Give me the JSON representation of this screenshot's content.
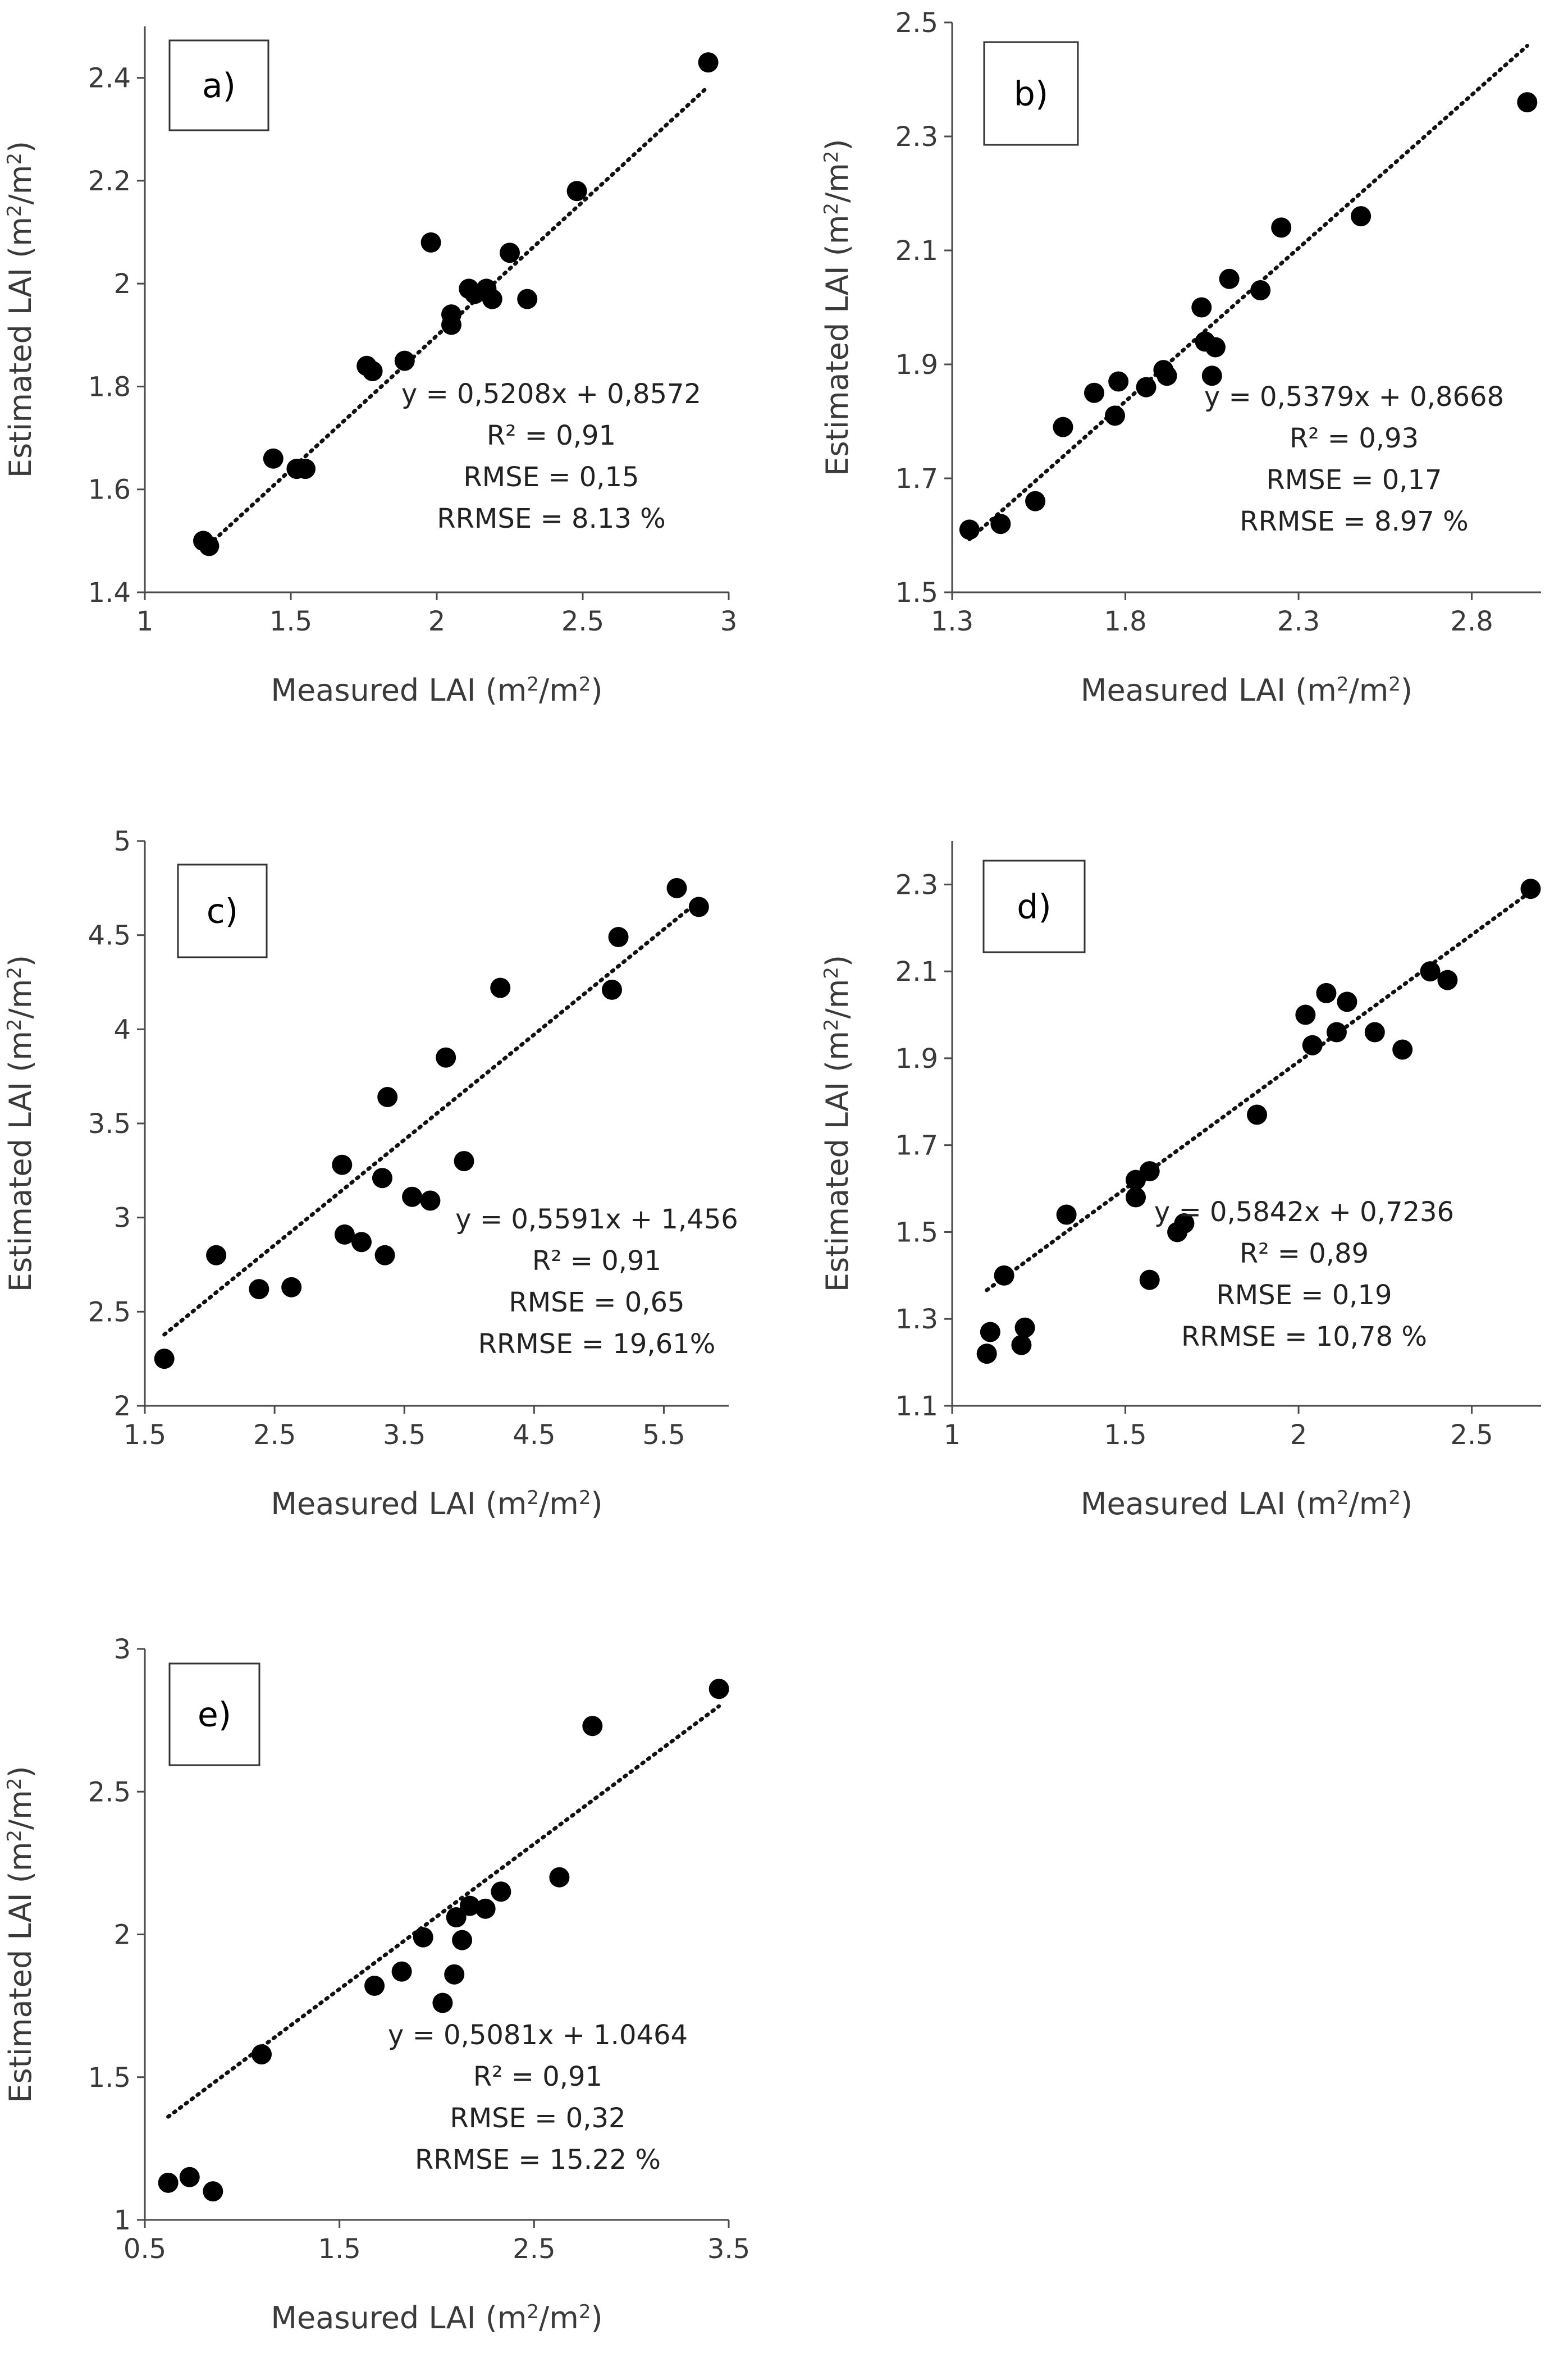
{
  "chart_data": [
    {
      "type": "scatter",
      "panel_label": "a)",
      "xlabel": "Measured LAI (m2/m2)",
      "ylabel": "Estimated LAI (m2/m2)",
      "xlim": [
        1,
        3
      ],
      "ylim": [
        1.4,
        2.5
      ],
      "xticks": [
        1,
        1.5,
        2,
        2.5,
        3
      ],
      "xtick_labels": [
        "1",
        "1.5",
        "2",
        "2.5",
        "3"
      ],
      "yticks": [
        1.4,
        1.6,
        1.8,
        2.0,
        2.2,
        2.4
      ],
      "ytick_labels": [
        "1.4",
        "1.6",
        "1.8",
        "2",
        "2.2",
        "2.4"
      ],
      "x": [
        1.2,
        1.22,
        1.44,
        1.52,
        1.55,
        1.76,
        1.78,
        1.89,
        1.98,
        2.05,
        2.05,
        2.11,
        2.13,
        2.17,
        2.19,
        2.25,
        2.31,
        2.48,
        2.93
      ],
      "y": [
        1.5,
        1.49,
        1.66,
        1.64,
        1.64,
        1.84,
        1.83,
        1.85,
        2.08,
        1.92,
        1.94,
        1.99,
        1.98,
        1.99,
        1.97,
        2.06,
        1.97,
        2.18,
        2.43
      ],
      "trendline": {
        "slope": 0.5208,
        "intercept": 0.8572,
        "x_range": [
          1.2,
          2.93
        ]
      },
      "annotations": [
        "y = 0,5208x + 0,8572",
        "R² = 0,91",
        "RMSE = 0,15",
        "RRMSE = 8.13 %"
      ]
    },
    {
      "type": "scatter",
      "panel_label": "b)",
      "xlabel": "Measured LAI (m2/m2)",
      "ylabel": "Estimated LAI (m2/m2)",
      "xlim": [
        1.3,
        3.0
      ],
      "ylim": [
        1.5,
        2.5
      ],
      "xticks": [
        1.3,
        1.8,
        2.3,
        2.8
      ],
      "xtick_labels": [
        "1.3",
        "1.8",
        "2.3",
        "2.8"
      ],
      "yticks": [
        1.5,
        1.7,
        1.9,
        2.1,
        2.3,
        2.5
      ],
      "ytick_labels": [
        "1.5",
        "1.7",
        "1.9",
        "2.1",
        "2.3",
        "2.5"
      ],
      "x": [
        1.35,
        1.44,
        1.54,
        1.62,
        1.71,
        1.77,
        1.78,
        1.86,
        1.91,
        1.92,
        2.02,
        2.03,
        2.05,
        2.06,
        2.1,
        2.19,
        2.25,
        2.48,
        2.96
      ],
      "y": [
        1.61,
        1.62,
        1.66,
        1.79,
        1.85,
        1.81,
        1.87,
        1.86,
        1.89,
        1.88,
        2.0,
        1.94,
        1.88,
        1.93,
        2.05,
        2.03,
        2.14,
        2.16,
        2.36
      ],
      "trendline": {
        "slope": 0.5379,
        "intercept": 0.8668,
        "x_range": [
          1.35,
          2.96
        ]
      },
      "annotations": [
        "y = 0,5379x + 0,8668",
        "R² = 0,93",
        "RMSE = 0,17",
        "RRMSE = 8.97 %"
      ]
    },
    {
      "type": "scatter",
      "panel_label": "c)",
      "xlabel": "Measured LAI (m2/m2)",
      "ylabel": "Estimated LAI (m2/m2)",
      "xlim": [
        1.5,
        6.0
      ],
      "ylim": [
        2,
        5
      ],
      "xticks": [
        1.5,
        2.5,
        3.5,
        4.5,
        5.5
      ],
      "xtick_labels": [
        "1.5",
        "2.5",
        "3.5",
        "4.5",
        "5.5"
      ],
      "yticks": [
        2,
        2.5,
        3,
        3.5,
        4,
        4.5,
        5
      ],
      "ytick_labels": [
        "2",
        "2.5",
        "3",
        "3.5",
        "4",
        "4.5",
        "5"
      ],
      "x": [
        1.65,
        2.05,
        2.38,
        2.63,
        3.02,
        3.04,
        3.17,
        3.33,
        3.35,
        3.37,
        3.56,
        3.7,
        3.82,
        3.96,
        4.24,
        5.1,
        5.15,
        5.6,
        5.77
      ],
      "y": [
        2.25,
        2.8,
        2.62,
        2.63,
        3.28,
        2.91,
        2.87,
        3.21,
        2.8,
        3.64,
        3.11,
        3.09,
        3.85,
        3.3,
        4.22,
        4.21,
        4.49,
        4.75,
        4.65
      ],
      "trendline": {
        "slope": 0.5591,
        "intercept": 1.456,
        "x_range": [
          1.65,
          5.77
        ]
      },
      "annotations": [
        "y = 0,5591x + 1,456",
        "R² = 0,91",
        "RMSE = 0,65",
        "RRMSE = 19,61%"
      ]
    },
    {
      "type": "scatter",
      "panel_label": "d)",
      "xlabel": "Measured LAI (m2/m2)",
      "ylabel": "Estimated LAI (m2/m2)",
      "xlim": [
        1,
        2.7
      ],
      "ylim": [
        1.1,
        2.4
      ],
      "xticks": [
        1,
        1.5,
        2,
        2.5
      ],
      "xtick_labels": [
        "1",
        "1.5",
        "2",
        "2.5"
      ],
      "yticks": [
        1.1,
        1.3,
        1.5,
        1.7,
        1.9,
        2.1,
        2.3
      ],
      "ytick_labels": [
        "1.1",
        "1.3",
        "1.5",
        "1.7",
        "1.9",
        "2.1",
        "2.3"
      ],
      "x": [
        1.1,
        1.11,
        1.15,
        1.2,
        1.21,
        1.33,
        1.53,
        1.53,
        1.57,
        1.57,
        1.65,
        1.67,
        1.88,
        2.02,
        2.04,
        2.08,
        2.11,
        2.14,
        2.22,
        2.3,
        2.38,
        2.43,
        2.67
      ],
      "y": [
        1.22,
        1.27,
        1.4,
        1.24,
        1.28,
        1.54,
        1.62,
        1.58,
        1.64,
        1.39,
        1.5,
        1.52,
        1.77,
        2.0,
        1.93,
        2.05,
        1.96,
        2.03,
        1.96,
        1.92,
        2.1,
        2.08,
        2.29
      ],
      "trendline": {
        "slope": 0.5842,
        "intercept": 0.7236,
        "x_range": [
          1.1,
          2.67
        ]
      },
      "annotations": [
        "y = 0,5842x + 0,7236",
        "R² = 0,89",
        "RMSE = 0,19",
        "RRMSE = 10,78 %"
      ]
    },
    {
      "type": "scatter",
      "panel_label": "e)",
      "xlabel": "Measured LAI (m2/m2)",
      "ylabel": "Estimated  LAI (m2/m2)",
      "xlim": [
        0.5,
        3.5
      ],
      "ylim": [
        1,
        3
      ],
      "xticks": [
        0.5,
        1.5,
        2.5,
        3.5
      ],
      "xtick_labels": [
        "0.5",
        "1.5",
        "2.5",
        "3.5"
      ],
      "yticks": [
        1,
        1.5,
        2,
        2.5,
        3
      ],
      "ytick_labels": [
        "1",
        "1.5",
        "2",
        "2.5",
        "3"
      ],
      "x": [
        0.62,
        0.73,
        0.85,
        1.1,
        1.68,
        1.82,
        1.93,
        2.03,
        2.09,
        2.1,
        2.13,
        2.17,
        2.25,
        2.33,
        2.63,
        2.8,
        3.45
      ],
      "y": [
        1.13,
        1.15,
        1.1,
        1.58,
        1.82,
        1.87,
        1.99,
        1.76,
        1.86,
        2.06,
        1.98,
        2.1,
        2.09,
        2.15,
        2.2,
        2.73,
        2.86
      ],
      "trendline": {
        "slope": 0.5081,
        "intercept": 1.0464,
        "x_range": [
          0.62,
          3.45
        ]
      },
      "annotations": [
        "y = 0,5081x + 1.0464",
        "R² = 0,91",
        "RMSE = 0,32",
        "RRMSE = 15.22 %"
      ]
    }
  ]
}
